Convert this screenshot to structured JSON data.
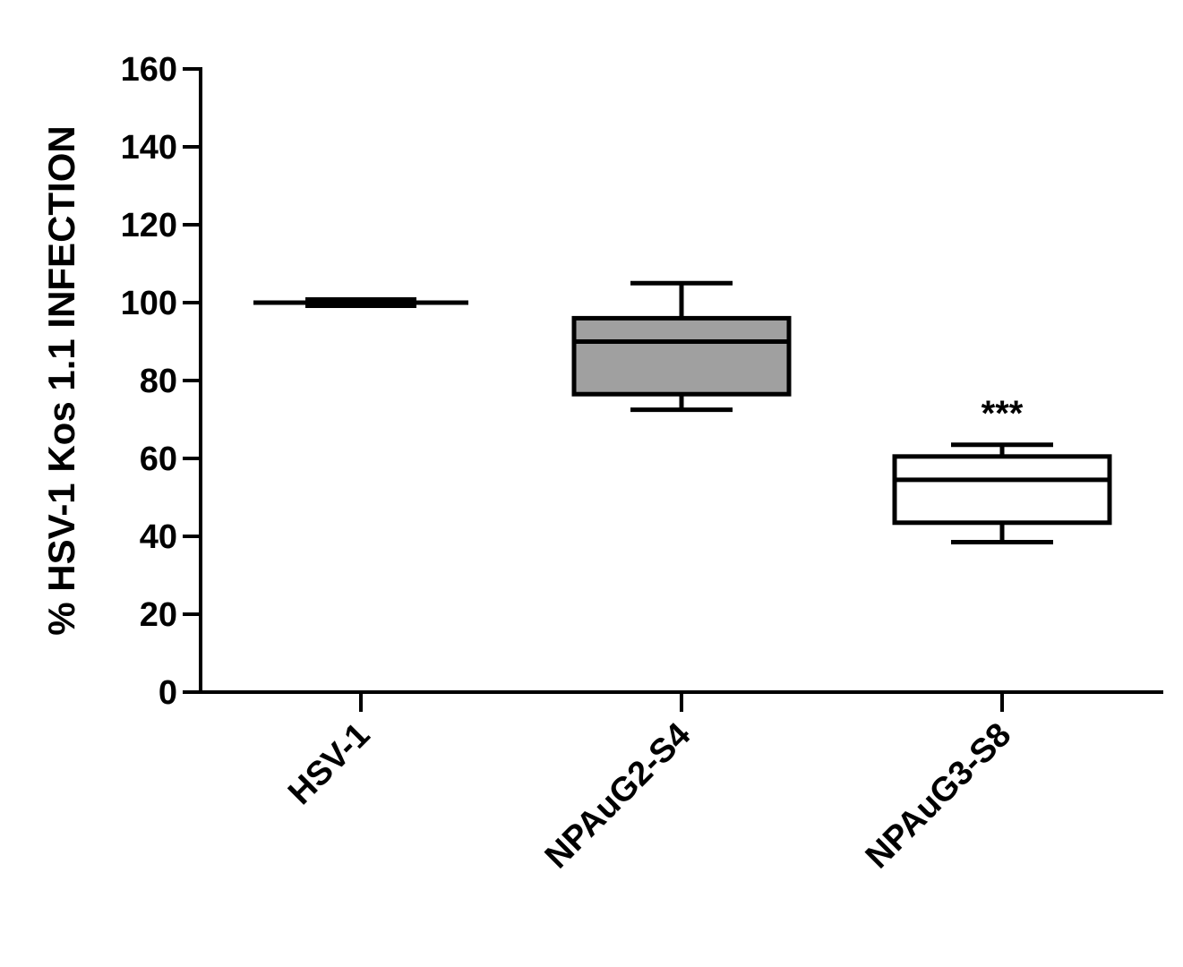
{
  "chart_data": {
    "type": "box",
    "y_label": "% HSV-1 Kos 1.1 INFECTION",
    "categories": [
      "HSV-1",
      "NPAuG2-S4",
      "NPAuG3-S8"
    ],
    "boxes": [
      {
        "min": 100,
        "q1": 100,
        "median": 100,
        "q3": 100,
        "max": 100,
        "color": "#ffffff"
      },
      {
        "min": 72.5,
        "q1": 76.5,
        "median": 90,
        "q3": 96,
        "max": 105,
        "color": "#a0a0a0"
      },
      {
        "min": 38.5,
        "q1": 43.5,
        "median": 54.5,
        "q3": 60.5,
        "max": 63.5,
        "color": "#ffffff"
      }
    ],
    "annotations": [
      {
        "text": "***",
        "category": "NPAuG3-S8"
      }
    ],
    "ylim": [
      0,
      160
    ],
    "yticks": [
      0,
      20,
      40,
      60,
      80,
      100,
      120,
      140,
      160
    ]
  }
}
